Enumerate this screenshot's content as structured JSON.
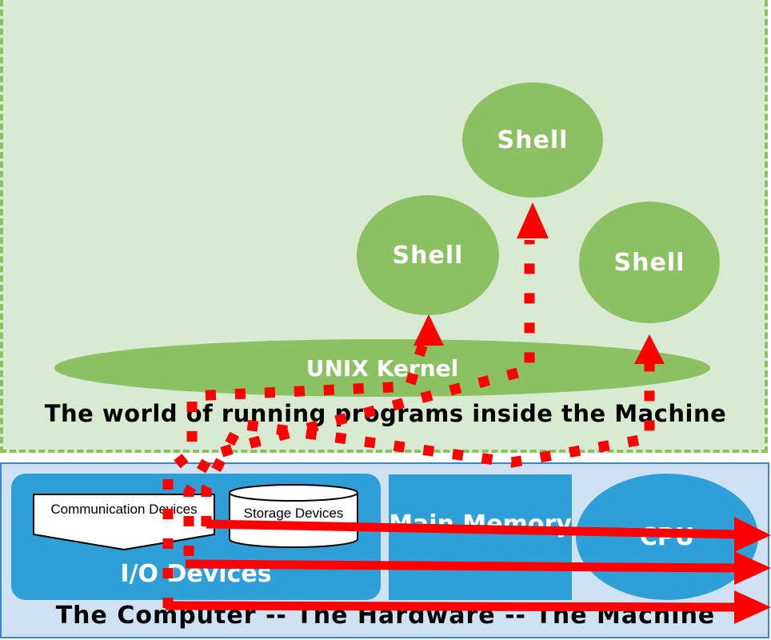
{
  "software_world": {
    "caption": "The world of running programs inside the Machine",
    "kernel_label": "UNIX Kernel",
    "shells": [
      "Shell",
      "Shell",
      "Shell"
    ]
  },
  "hardware": {
    "caption": "The Computer -- The Hardware -- The Machine",
    "io_label": "I/O Devices",
    "comm_label": "Communication Devices",
    "storage_label": "Storage Devices",
    "memory_label": "Main Memory",
    "cpu_label": "CPU"
  },
  "colors": {
    "software_bg": "#d9ead3",
    "software_accent": "#8bc063",
    "hardware_bg": "#cfe2f3",
    "hardware_accent": "#2f9fd8",
    "arrow": "#ff0000"
  }
}
